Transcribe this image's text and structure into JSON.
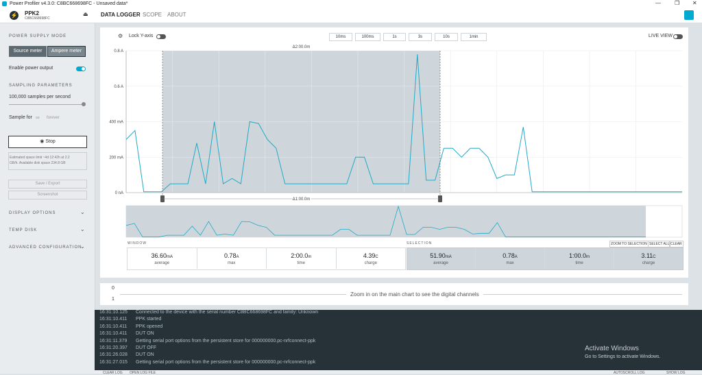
{
  "title_bar": {
    "title": "Power Profiler v4.3.0: C8BC668698FC - Unsaved data*"
  },
  "header": {
    "device": "PPK2",
    "serial": "C8BC668698FC",
    "tabs": [
      "DATA LOGGER",
      "SCOPE",
      "ABOUT"
    ]
  },
  "sidebar": {
    "power_supply_mode": "POWER SUPPLY MODE",
    "modes": [
      "Source meter",
      "Ampere meter"
    ],
    "enable_output": "Enable power output",
    "sampling_parameters": "SAMPLING PARAMETERS",
    "sample_rate": "100,000 samples per second",
    "sample_for": "Sample for",
    "infinity": "∞",
    "duration": "forever",
    "stop": "Stop",
    "info": [
      "Estimated space limit ~4d 12:42h at 2.2",
      "GB/h. Available disk space 234.8 GB"
    ],
    "save_export": "Save / Export",
    "screenshot": "Screenshot",
    "sections": [
      "DISPLAY OPTIONS",
      "TEMP DISK",
      "ADVANCED CONFIGURATION"
    ]
  },
  "toolbar": {
    "lock_y": "Lock Y-axis",
    "time_buttons": [
      "10ms",
      "100ms",
      "1s",
      "3s",
      "10s",
      "1min"
    ],
    "live_view": "LIVE VIEW"
  },
  "chart": {
    "type": "line",
    "color": "#1fa9c7",
    "ylim": [
      0,
      800
    ],
    "yticks": [
      {
        "value": 800,
        "label": "0.8 A"
      },
      {
        "value": 600,
        "label": "0.6 A"
      },
      {
        "value": 400,
        "label": "400 mA"
      },
      {
        "value": 200,
        "label": "200 mA"
      },
      {
        "value": 0,
        "label": "0 nA"
      }
    ],
    "values": [
      300,
      350,
      5,
      5,
      5,
      50,
      50,
      50,
      280,
      50,
      400,
      50,
      80,
      50,
      400,
      390,
      300,
      250,
      50,
      50,
      50,
      50,
      50,
      50,
      50,
      50,
      200,
      200,
      50,
      50,
      50,
      50,
      50,
      780,
      70,
      70,
      250,
      250,
      200,
      250,
      250,
      200,
      80,
      100,
      100,
      370,
      5,
      5,
      5,
      5,
      5,
      5,
      5,
      5,
      5,
      5,
      5,
      5,
      5,
      5,
      5,
      5,
      5,
      5
    ],
    "selection_delta": "Δ2:00.0m",
    "marker_delta": "Δ1:00.0m"
  },
  "stats": {
    "window_title": "WINDOW",
    "selection_title": "SELECTION",
    "actions": [
      "ZOOM TO SELECTION",
      "SELECT ALL",
      "CLEAR"
    ],
    "window": [
      {
        "value": "36.60",
        "unit": "mA",
        "label": "average"
      },
      {
        "value": "0.78",
        "unit": "A",
        "label": "max"
      },
      {
        "value": "2:00.0",
        "unit": "m",
        "label": "time"
      },
      {
        "value": "4.39",
        "unit": "C",
        "label": "charge"
      }
    ],
    "selection": [
      {
        "value": "51.90",
        "unit": "mA",
        "label": "average"
      },
      {
        "value": "0.78",
        "unit": "A",
        "label": "max"
      },
      {
        "value": "1:00.0",
        "unit": "m",
        "label": "time"
      },
      {
        "value": "3.11",
        "unit": "C",
        "label": "charge"
      }
    ]
  },
  "digital": {
    "channels": [
      "0",
      "1"
    ],
    "message": "Zoom in on the main chart to see the digital channels"
  },
  "log": {
    "entries": [
      {
        "time": "16:31:10.125",
        "message": "Connected to the device with the serial number C8BC668698FC and family: Unknown"
      },
      {
        "time": "16:31:10.411",
        "message": "PPK started"
      },
      {
        "time": "16:31:10.411",
        "message": "PPK opened"
      },
      {
        "time": "16:31:10.411",
        "message": "DUT ON"
      },
      {
        "time": "16:31:11.379",
        "message": "Getting serial port options from the persistent store for 000000000.pc-nrfconnect-ppk"
      },
      {
        "time": "16:31:20.397",
        "message": "DUT OFF"
      },
      {
        "time": "16:31:26.028",
        "message": "DUT ON"
      },
      {
        "time": "16:31:27.015",
        "message": "Getting serial port options from the persistent store for 000000000.pc-nrfconnect-ppk"
      }
    ]
  },
  "footer": {
    "buttons": [
      "CLEAR LOG",
      "OPEN LOG FILE"
    ],
    "autoscroll": "AUTOSCROLL LOG",
    "show_log": "SHOW LOG"
  },
  "watermark": {
    "title": "Activate Windows",
    "subtitle": "Go to Settings to activate Windows."
  }
}
